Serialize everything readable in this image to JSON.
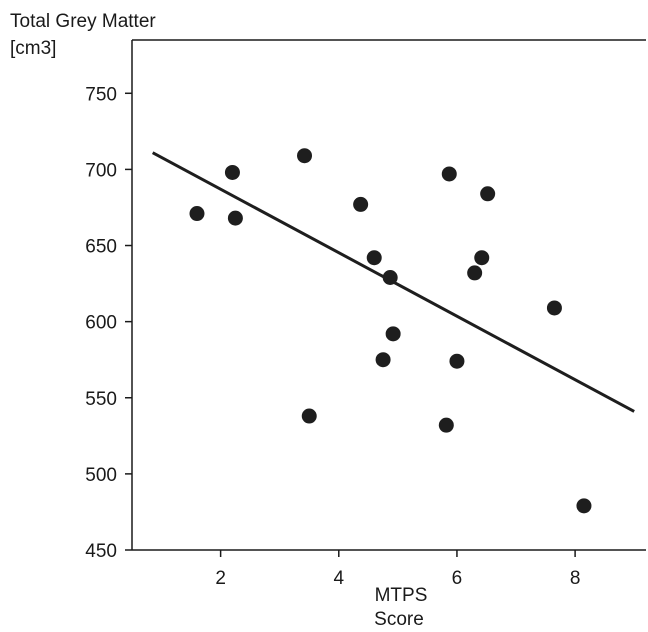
{
  "chart_data": {
    "type": "scatter",
    "title": "",
    "ylabel_lines": [
      "Total Grey Matter",
      "[cm3]"
    ],
    "xlabel_lines": [
      "MTPS",
      "Score"
    ],
    "xlim": [
      0.5,
      9.2
    ],
    "ylim": [
      450,
      785
    ],
    "x_ticks": [
      2,
      4,
      6,
      8
    ],
    "y_ticks": [
      450,
      500,
      550,
      600,
      650,
      700,
      750
    ],
    "grid": false,
    "point_color": "#1e1e1e",
    "line_color": "#1e1e1e",
    "points": [
      {
        "x": 1.6,
        "y": 671
      },
      {
        "x": 2.2,
        "y": 698
      },
      {
        "x": 2.25,
        "y": 668
      },
      {
        "x": 3.42,
        "y": 709
      },
      {
        "x": 3.5,
        "y": 538
      },
      {
        "x": 4.37,
        "y": 677
      },
      {
        "x": 4.6,
        "y": 642
      },
      {
        "x": 4.75,
        "y": 575
      },
      {
        "x": 4.87,
        "y": 629
      },
      {
        "x": 4.92,
        "y": 592
      },
      {
        "x": 5.82,
        "y": 532
      },
      {
        "x": 5.87,
        "y": 697
      },
      {
        "x": 6.0,
        "y": 574
      },
      {
        "x": 6.3,
        "y": 632
      },
      {
        "x": 6.42,
        "y": 642
      },
      {
        "x": 6.52,
        "y": 684
      },
      {
        "x": 7.65,
        "y": 609
      },
      {
        "x": 8.15,
        "y": 479
      }
    ],
    "fit_line": {
      "x": [
        0.85,
        9.0
      ],
      "y": [
        711,
        541
      ]
    }
  }
}
